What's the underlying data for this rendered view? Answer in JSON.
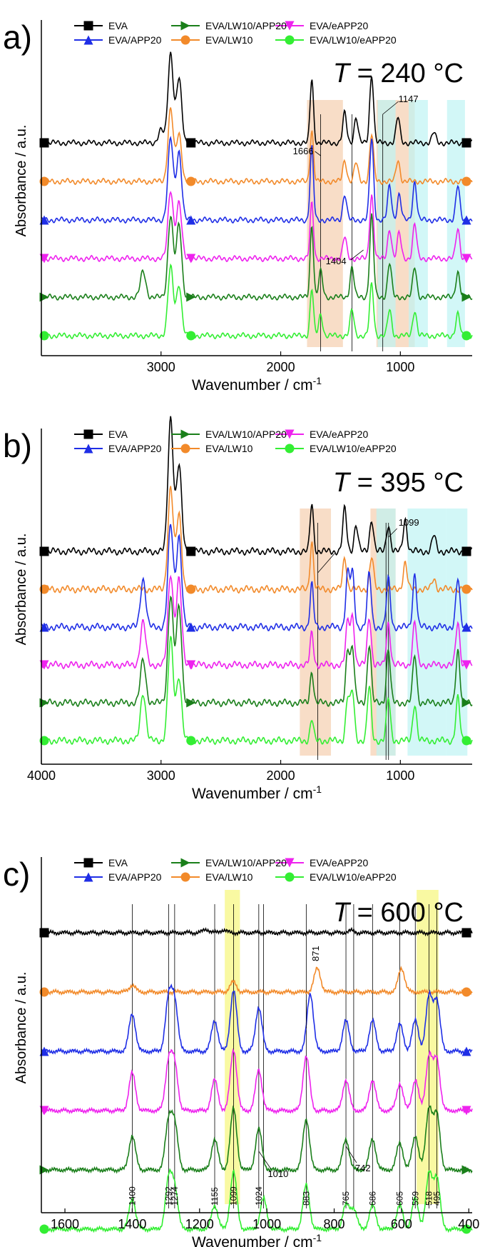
{
  "colors": {
    "axis": "#000000",
    "region_orange": "#f4c7a1",
    "region_cyan": "#bff3f3",
    "region_yellow": "#f7f77a"
  },
  "series_styles": [
    {
      "name": "EVA",
      "color": "#000000",
      "marker": "square"
    },
    {
      "name": "EVA/LW10",
      "color": "#f28a2a",
      "marker": "circle"
    },
    {
      "name": "EVA/APP20",
      "color": "#1f2ee6",
      "marker": "triangle-up"
    },
    {
      "name": "EVA/eAPP20",
      "color": "#ee22ee",
      "marker": "triangle-down"
    },
    {
      "name": "EVA/LW10/APP20",
      "color": "#1a7f1a",
      "marker": "triangle-right"
    },
    {
      "name": "EVA/LW10/eAPP20",
      "color": "#33ee33",
      "marker": "circle"
    }
  ],
  "chart_data": [
    {
      "panel": "a)",
      "type": "line",
      "title": "T = 240 °C",
      "title_var": "T",
      "title_rest": " = 240 °C",
      "xlabel": "Wavenumber / cm",
      "xlabel_sup": "-1",
      "ylabel": "Absorbance / a.u.",
      "xlim": [
        4000,
        400
      ],
      "x_reversed": true,
      "xticks": [
        3000,
        2000,
        1000
      ],
      "y_ticks_shown": false,
      "grid": false,
      "legend_position": "top",
      "series": [
        {
          "name": "EVA",
          "peaks": [
            [
              3000,
              0.15
            ],
            [
              2920,
              1.05
            ],
            [
              2850,
              0.75
            ],
            [
              1740,
              0.75
            ],
            [
              1465,
              0.35
            ],
            [
              1370,
              0.3
            ],
            [
              1240,
              0.8
            ],
            [
              1020,
              0.3
            ],
            [
              720,
              0.12
            ]
          ]
        },
        {
          "name": "EVA/LW10",
          "peaks": [
            [
              2920,
              0.85
            ],
            [
              2850,
              0.55
            ],
            [
              1740,
              0.6
            ],
            [
              1465,
              0.25
            ],
            [
              1370,
              0.22
            ],
            [
              1240,
              0.55
            ],
            [
              1020,
              0.25
            ]
          ]
        },
        {
          "name": "EVA/APP20",
          "peaks": [
            [
              2920,
              0.95
            ],
            [
              2850,
              0.8
            ],
            [
              1740,
              0.85
            ],
            [
              1465,
              0.3
            ],
            [
              1240,
              0.95
            ],
            [
              1090,
              0.4
            ],
            [
              1010,
              0.3
            ],
            [
              880,
              0.45
            ],
            [
              520,
              0.4
            ]
          ]
        },
        {
          "name": "EVA/eAPP20",
          "peaks": [
            [
              2920,
              0.8
            ],
            [
              2850,
              0.65
            ],
            [
              1740,
              0.65
            ],
            [
              1465,
              0.25
            ],
            [
              1240,
              0.75
            ],
            [
              1090,
              0.35
            ],
            [
              1010,
              0.3
            ],
            [
              880,
              0.4
            ],
            [
              520,
              0.35
            ]
          ]
        },
        {
          "name": "EVA/LW10/APP20",
          "peaks": [
            [
              3150,
              0.3
            ],
            [
              2920,
              0.95
            ],
            [
              2850,
              0.85
            ],
            [
              1740,
              0.85
            ],
            [
              1666,
              0.3
            ],
            [
              1404,
              0.35
            ],
            [
              1240,
              0.95
            ],
            [
              1090,
              0.4
            ],
            [
              880,
              0.35
            ],
            [
              520,
              0.3
            ]
          ]
        },
        {
          "name": "EVA/LW10/eAPP20",
          "peaks": [
            [
              2920,
              0.8
            ],
            [
              2850,
              0.6
            ],
            [
              1740,
              0.55
            ],
            [
              1666,
              0.25
            ],
            [
              1404,
              0.3
            ],
            [
              1240,
              0.6
            ],
            [
              1090,
              0.3
            ],
            [
              880,
              0.3
            ],
            [
              520,
              0.25
            ]
          ]
        }
      ],
      "annotations": [
        "1666",
        "1147",
        "1404"
      ],
      "highlight_ranges": [
        [
          1780,
          1480,
          "orange"
        ],
        [
          1200,
          880,
          "orange"
        ],
        [
          1190,
          1040,
          "cyan"
        ],
        [
          930,
          770,
          "cyan"
        ],
        [
          610,
          460,
          "cyan"
        ]
      ],
      "vlines": [
        1666,
        1404,
        1147
      ]
    },
    {
      "panel": "b)",
      "type": "line",
      "title": "T = 395 °C",
      "title_var": "T",
      "title_rest": " = 395 °C",
      "xlabel": "Wavenumber / cm",
      "xlabel_sup": "-1",
      "ylabel": "Absorbance / a.u.",
      "xlim": [
        4000,
        400
      ],
      "x_reversed": true,
      "xticks": [
        4000,
        3000,
        2000,
        1000
      ],
      "y_ticks_shown": false,
      "grid": false,
      "legend_position": "top",
      "series": [
        {
          "name": "EVA",
          "peaks": [
            [
              2920,
              1.25
            ],
            [
              2850,
              0.8
            ],
            [
              1740,
              0.45
            ],
            [
              1465,
              0.4
            ],
            [
              1370,
              0.25
            ],
            [
              1240,
              0.3
            ],
            [
              1100,
              0.25
            ],
            [
              960,
              0.3
            ],
            [
              720,
              0.15
            ]
          ]
        },
        {
          "name": "EVA/LW10",
          "peaks": [
            [
              2920,
              0.95
            ],
            [
              2850,
              0.7
            ],
            [
              1740,
              0.45
            ],
            [
              1465,
              0.3
            ],
            [
              1240,
              0.3
            ],
            [
              960,
              0.25
            ],
            [
              720,
              0.1
            ]
          ]
        },
        {
          "name": "EVA/APP20",
          "peaks": [
            [
              3150,
              0.45
            ],
            [
              2920,
              0.95
            ],
            [
              2850,
              0.85
            ],
            [
              1740,
              0.4
            ],
            [
              1440,
              0.5
            ],
            [
              1400,
              0.5
            ],
            [
              1260,
              0.5
            ],
            [
              1100,
              0.45
            ],
            [
              880,
              0.5
            ],
            [
              520,
              0.45
            ]
          ]
        },
        {
          "name": "EVA/eAPP20",
          "peaks": [
            [
              3150,
              0.4
            ],
            [
              2920,
              0.85
            ],
            [
              2850,
              0.8
            ],
            [
              1740,
              0.3
            ],
            [
              1440,
              0.4
            ],
            [
              1400,
              0.45
            ],
            [
              1260,
              0.45
            ],
            [
              1100,
              0.4
            ],
            [
              880,
              0.4
            ],
            [
              520,
              0.4
            ]
          ]
        },
        {
          "name": "EVA/LW10/APP20",
          "peaks": [
            [
              3150,
              0.4
            ],
            [
              2920,
              1.0
            ],
            [
              2850,
              0.9
            ],
            [
              1740,
              0.3
            ],
            [
              1440,
              0.5
            ],
            [
              1400,
              0.5
            ],
            [
              1260,
              0.55
            ],
            [
              1100,
              0.5
            ],
            [
              880,
              0.45
            ],
            [
              520,
              0.5
            ]
          ]
        },
        {
          "name": "EVA/LW10/eAPP20",
          "peaks": [
            [
              3150,
              0.45
            ],
            [
              2920,
              0.95
            ],
            [
              2850,
              0.6
            ],
            [
              1740,
              0.2
            ],
            [
              1440,
              0.4
            ],
            [
              1400,
              0.45
            ],
            [
              1260,
              0.5
            ],
            [
              1100,
              0.4
            ],
            [
              880,
              0.35
            ],
            [
              520,
              0.4
            ]
          ]
        }
      ],
      "annotations": [
        "1099"
      ],
      "highlight_ranges": [
        [
          1840,
          1580,
          "orange"
        ],
        [
          1250,
          1040,
          "orange"
        ],
        [
          1200,
          1040,
          "cyan"
        ],
        [
          940,
          620,
          "cyan"
        ],
        [
          620,
          440,
          "cyan"
        ]
      ],
      "vlines": [
        1690,
        1120,
        1099
      ]
    },
    {
      "panel": "c)",
      "type": "line",
      "title": "T = 600 °C",
      "title_var": "T",
      "title_rest": " = 600 °C",
      "xlabel": "Wavenumber / cm",
      "xlabel_sup": "-1",
      "ylabel": "Absorbance / a.u.",
      "xlim": [
        1670,
        390
      ],
      "x_reversed": true,
      "xticks": [
        1600,
        1400,
        1200,
        1000,
        800,
        600,
        400
      ],
      "y_ticks_shown": false,
      "grid": false,
      "legend_position": "top",
      "series": [
        {
          "name": "EVA",
          "peaks": [
            [
              1180,
              0.05
            ],
            [
              1130,
              0.04
            ],
            [
              750,
              0.03
            ]
          ]
        },
        {
          "name": "EVA/LW10",
          "peaks": [
            [
              1400,
              0.1
            ],
            [
              1100,
              0.15
            ],
            [
              850,
              0.35
            ],
            [
              600,
              0.35
            ]
          ]
        },
        {
          "name": "EVA/APP20",
          "peaks": [
            [
              1400,
              0.55
            ],
            [
              1292,
              0.75
            ],
            [
              1274,
              0.72
            ],
            [
              1155,
              0.45
            ],
            [
              1099,
              0.9
            ],
            [
              1024,
              0.65
            ],
            [
              871,
              0.85
            ],
            [
              765,
              0.45
            ],
            [
              686,
              0.45
            ],
            [
              605,
              0.4
            ],
            [
              559,
              0.45
            ],
            [
              518,
              0.8
            ],
            [
              495,
              0.75
            ]
          ]
        },
        {
          "name": "EVA/eAPP20",
          "peaks": [
            [
              1400,
              0.55
            ],
            [
              1292,
              0.7
            ],
            [
              1274,
              0.65
            ],
            [
              1155,
              0.45
            ],
            [
              1099,
              0.9
            ],
            [
              1024,
              0.6
            ],
            [
              883,
              0.8
            ],
            [
              765,
              0.45
            ],
            [
              686,
              0.45
            ],
            [
              605,
              0.4
            ],
            [
              559,
              0.45
            ],
            [
              518,
              0.8
            ],
            [
              495,
              0.75
            ]
          ]
        },
        {
          "name": "EVA/LW10/APP20",
          "peaks": [
            [
              1400,
              0.5
            ],
            [
              1292,
              0.7
            ],
            [
              1274,
              0.65
            ],
            [
              1155,
              0.45
            ],
            [
              1099,
              0.9
            ],
            [
              1024,
              0.6
            ],
            [
              883,
              0.75
            ],
            [
              765,
              0.45
            ],
            [
              686,
              0.45
            ],
            [
              605,
              0.4
            ],
            [
              559,
              0.5
            ],
            [
              518,
              0.9
            ],
            [
              495,
              0.8
            ]
          ]
        },
        {
          "name": "EVA/LW10/eAPP20",
          "peaks": [
            [
              1400,
              0.45
            ],
            [
              1292,
              0.7
            ],
            [
              1274,
              0.6
            ],
            [
              1155,
              0.35
            ],
            [
              1099,
              0.85
            ],
            [
              1010,
              0.45
            ],
            [
              883,
              0.65
            ],
            [
              765,
              0.35
            ],
            [
              742,
              0.3
            ],
            [
              686,
              0.35
            ],
            [
              605,
              0.35
            ],
            [
              559,
              0.45
            ],
            [
              518,
              0.8
            ],
            [
              495,
              0.75
            ]
          ]
        }
      ],
      "annotations": [
        "871",
        "1010",
        "742"
      ],
      "peak_labels": [
        "1400",
        "1292",
        "1274",
        "1155",
        "1099",
        "1024",
        "883",
        "765",
        "686",
        "605",
        "559",
        "518",
        "495"
      ],
      "highlight_ranges": [
        [
          1125,
          1080,
          "yellow"
        ],
        [
          555,
          490,
          "yellow"
        ]
      ],
      "vlines": [
        1400,
        1292,
        1274,
        1155,
        1099,
        1024,
        1010,
        883,
        765,
        742,
        686,
        605,
        559,
        518,
        495
      ]
    }
  ]
}
